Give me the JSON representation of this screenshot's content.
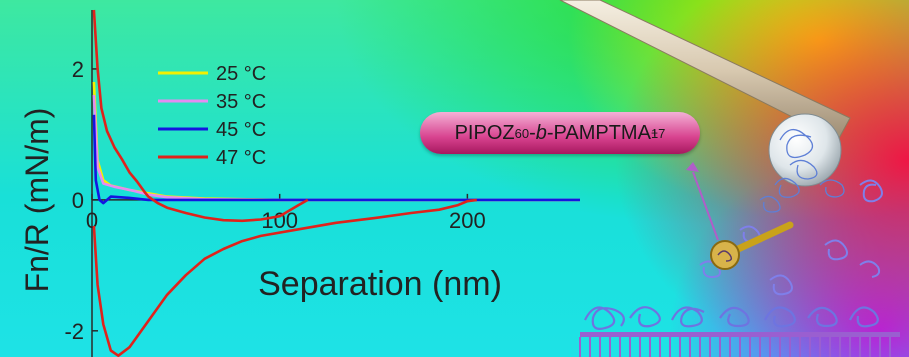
{
  "badge": {
    "part1": "PIPOZ",
    "sub1": "60",
    "part2": "-",
    "part3": "b",
    "part4": "-PAMPTMA",
    "sup": "+",
    "sub2": "17"
  },
  "chart_data": {
    "type": "line",
    "xlabel": "Separation (nm)",
    "ylabel": "Fn/R (mN/m)",
    "xlim": [
      0,
      260
    ],
    "ylim": [
      -2.4,
      2.9
    ],
    "xticks": [
      {
        "value": 0,
        "label": "0"
      },
      {
        "value": 100,
        "label": "100"
      },
      {
        "value": 200,
        "label": "200"
      }
    ],
    "yticks": [
      {
        "value": 2,
        "label": "2"
      },
      {
        "value": 0,
        "label": "0"
      },
      {
        "value": -2,
        "label": "-2"
      }
    ],
    "legend_position": "top-left",
    "series": [
      {
        "name": "25 °C",
        "color": "#f4f000",
        "points": [
          [
            1,
            1.8
          ],
          [
            3,
            0.6
          ],
          [
            6,
            0.3
          ],
          [
            10,
            0.22
          ],
          [
            20,
            0.15
          ],
          [
            30,
            0.1
          ],
          [
            40,
            0.05
          ],
          [
            60,
            0.02
          ],
          [
            100,
            0.0
          ],
          [
            200,
            0.0
          ],
          [
            260,
            0.0
          ]
        ]
      },
      {
        "name": "35 °C",
        "color": "#e48cf2",
        "points": [
          [
            1,
            1.6
          ],
          [
            3,
            0.5
          ],
          [
            6,
            0.25
          ],
          [
            12,
            0.2
          ],
          [
            22,
            0.14
          ],
          [
            30,
            0.08
          ],
          [
            40,
            0.04
          ],
          [
            60,
            0.01
          ],
          [
            100,
            0.0
          ],
          [
            200,
            0.0
          ],
          [
            260,
            0.0
          ]
        ]
      },
      {
        "name": "45 °C",
        "color": "#1515e0",
        "points": [
          [
            1,
            1.3
          ],
          [
            2,
            0.3
          ],
          [
            4,
            0.0
          ],
          [
            6,
            -0.05
          ],
          [
            10,
            0.05
          ],
          [
            20,
            0.03
          ],
          [
            30,
            0.0
          ],
          [
            60,
            0.0
          ],
          [
            100,
            0.0
          ],
          [
            200,
            0.0
          ],
          [
            260,
            0.0
          ]
        ]
      },
      {
        "name": "47 °C",
        "color": "#e0221b",
        "points": [
          [
            1,
            2.9
          ],
          [
            3,
            2.0
          ],
          [
            5,
            1.4
          ],
          [
            8,
            1.05
          ],
          [
            12,
            0.8
          ],
          [
            16,
            0.62
          ],
          [
            20,
            0.42
          ],
          [
            24,
            0.28
          ],
          [
            28,
            0.12
          ],
          [
            30,
            0.05
          ],
          [
            35,
            -0.05
          ],
          [
            40,
            -0.12
          ],
          [
            50,
            -0.2
          ],
          [
            60,
            -0.27
          ],
          [
            70,
            -0.31
          ],
          [
            80,
            -0.32
          ],
          [
            90,
            -0.3
          ],
          [
            100,
            -0.25
          ],
          [
            110,
            -0.08
          ],
          [
            115,
            0.0
          ]
        ]
      },
      {
        "name": "47 °C",
        "color": "#e0221b",
        "points": [
          [
            1,
            -0.4
          ],
          [
            3,
            -1.3
          ],
          [
            6,
            -1.9
          ],
          [
            10,
            -2.3
          ],
          [
            14,
            -2.38
          ],
          [
            20,
            -2.25
          ],
          [
            30,
            -1.85
          ],
          [
            40,
            -1.45
          ],
          [
            50,
            -1.15
          ],
          [
            60,
            -0.9
          ],
          [
            70,
            -0.75
          ],
          [
            80,
            -0.63
          ],
          [
            90,
            -0.55
          ],
          [
            110,
            -0.45
          ],
          [
            130,
            -0.35
          ],
          [
            150,
            -0.28
          ],
          [
            170,
            -0.2
          ],
          [
            185,
            -0.15
          ],
          [
            195,
            -0.08
          ],
          [
            200,
            -0.02
          ],
          [
            205,
            0.0
          ]
        ]
      }
    ]
  }
}
